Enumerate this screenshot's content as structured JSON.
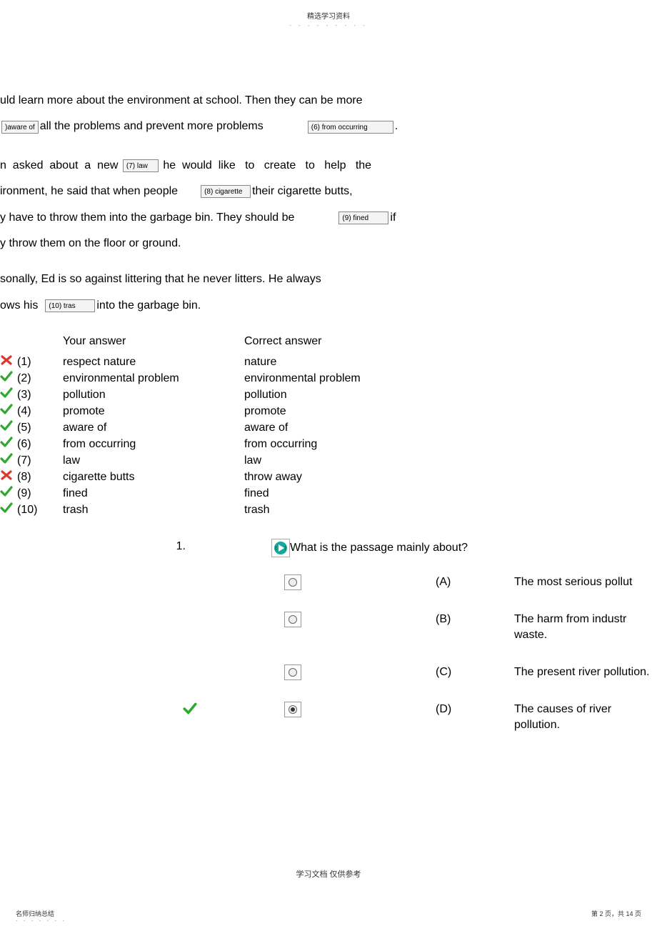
{
  "header": {
    "top": "精选学习资料",
    "dots": "- - - - - - - - -"
  },
  "passage": {
    "p1_pre": "uld learn more about the environment at school. Then they can be more",
    "blank5": "aware of",
    "blank5_prefix": ") ",
    "p1_mid": "all the problems and prevent more problems",
    "blank6": "(6) from occurring",
    "p1_end": ".",
    "p2_pre": "n  asked  about  a  new ",
    "blank7": "(7) law",
    "p2_mid": " he  would  like   to   create   to   help   the",
    "p3_pre": "ironment, he said that when people",
    "blank8": "(8) cigarette",
    "p3_end": "their cigarette butts,",
    "p4_pre": "y have to throw them into the garbage bin. They should be",
    "blank9": "(9) fined",
    "p4_end": "if",
    "p5": "y throw them on the floor or ground.",
    "p6": "sonally, Ed is so against littering that he never litters. He always",
    "p7_pre": "ows his",
    "blank10": "(10) tras",
    "p7_end": "into the garbage bin."
  },
  "answers": {
    "header_your": "Your answer",
    "header_correct": "Correct answer",
    "rows": [
      {
        "mark": "wrong",
        "num": "(1)",
        "your": "respect nature",
        "correct": "nature"
      },
      {
        "mark": "right",
        "num": "(2)",
        "your": "environmental problem",
        "correct": "environmental problem"
      },
      {
        "mark": "right",
        "num": "(3)",
        "your": "pollution",
        "correct": "pollution"
      },
      {
        "mark": "right",
        "num": "(4)",
        "your": "promote",
        "correct": "promote"
      },
      {
        "mark": "right",
        "num": "(5)",
        "your": "aware of",
        "correct": "aware of"
      },
      {
        "mark": "right",
        "num": "(6)",
        "your": "from occurring",
        "correct": "from occurring"
      },
      {
        "mark": "right",
        "num": "(7)",
        "your": "law",
        "correct": "law"
      },
      {
        "mark": "wrong",
        "num": "(8)",
        "your": "cigarette butts",
        "correct": "throw away"
      },
      {
        "mark": "right",
        "num": "(9)",
        "your": "fined",
        "correct": "fined"
      },
      {
        "mark": "right",
        "num": "(10)",
        "your": "trash",
        "correct": "trash"
      }
    ]
  },
  "question": {
    "number": "1.",
    "text": "What is the passage mainly about?",
    "options": [
      {
        "letter": "(A)",
        "text": "The most serious  pollut",
        "selected": false,
        "mark": ""
      },
      {
        "letter": "(B)",
        "text": "The harm from industr waste.",
        "selected": false,
        "mark": ""
      },
      {
        "letter": "(C)",
        "text": "The present river pollution.",
        "selected": false,
        "mark": ""
      },
      {
        "letter": "(D)",
        "text": "The causes of river pollution.",
        "selected": true,
        "mark": "right"
      }
    ]
  },
  "footer": {
    "center": "学习文档   仅供参考",
    "left": "名师归纳总结",
    "left_dots": "- - - - - - -",
    "right": "第 2 页，共 14 页"
  },
  "colors": {
    "green": "#2ea82e",
    "red": "#d83a2f",
    "audio_teal": "#14a99a"
  }
}
